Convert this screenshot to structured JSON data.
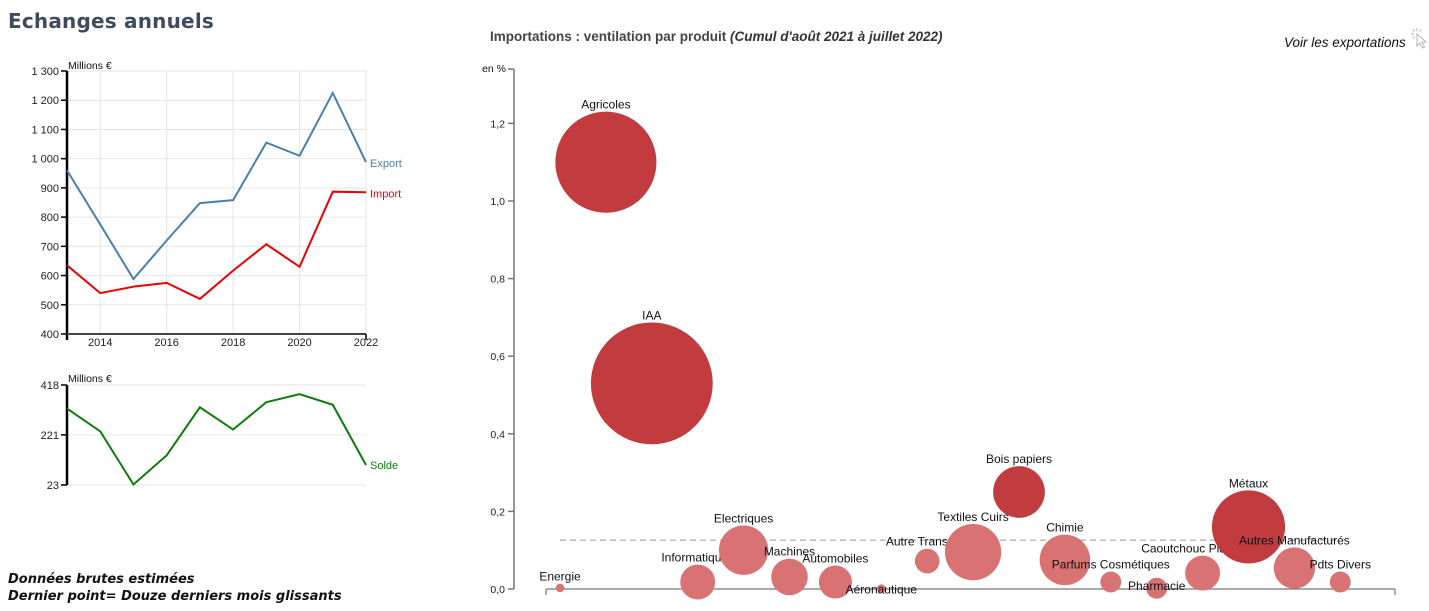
{
  "page": {
    "title": "Echanges annuels",
    "notes": [
      "Données brutes estimées",
      "Dernier point= Douze derniers mois glissants"
    ]
  },
  "bubble_header": {
    "title": "Importations : ventilation par produit",
    "subtitle": "(Cumul d'août 2021 à juillet 2022)",
    "toggle_label": "Voir les exportations",
    "toggle_icon": "pointer-click-icon"
  },
  "colors": {
    "export": "#4a80b0",
    "import": "#ee0000",
    "solde": "#0d7d0d",
    "bubble_dark": "#c23b3e",
    "bubble_light": "#d87273",
    "axis": "#000000",
    "grid": "#e6e6e6"
  },
  "chart_data": [
    {
      "type": "line",
      "title": "Echanges annuels",
      "ylabel": "Millions €",
      "x": [
        2013,
        2014,
        2015,
        2016,
        2017,
        2018,
        2019,
        2020,
        2021,
        2022
      ],
      "xticks": [
        "2014",
        "2016",
        "2018",
        "2020",
        "2022"
      ],
      "yticks": [
        "400",
        "500",
        "600",
        "700",
        "800",
        "900",
        "1 000",
        "1 100",
        "1 200",
        "1 300"
      ],
      "ylim": [
        400,
        1300
      ],
      "xlim": [
        2013,
        2022
      ],
      "grid": true,
      "series": [
        {
          "name": "Export",
          "values": [
            960,
            775,
            588,
            720,
            848,
            858,
            1055,
            1010,
            1225,
            988
          ]
        },
        {
          "name": "Import",
          "values": [
            635,
            540,
            562,
            575,
            520,
            617,
            707,
            630,
            887,
            885
          ]
        }
      ]
    },
    {
      "type": "line",
      "title": "Solde",
      "ylabel": "Millions €",
      "x": [
        2013,
        2014,
        2015,
        2016,
        2017,
        2018,
        2019,
        2020,
        2021,
        2022
      ],
      "yticks": [
        "23",
        "221",
        "418"
      ],
      "ylim": [
        23,
        418
      ],
      "xlim": [
        2013,
        2022
      ],
      "grid": true,
      "series": [
        {
          "name": "Solde",
          "values": [
            325,
            235,
            25,
            140,
            330,
            242,
            350,
            382,
            340,
            102
          ]
        }
      ]
    },
    {
      "type": "scatter",
      "title": "Importations : ventilation par produit (Cumul d'août 2021 à juillet 2022)",
      "ylabel": "en %",
      "yticks": [
        "0,0",
        "0,2",
        "0,4",
        "0,6",
        "0,8",
        "1,0",
        "1,2"
      ],
      "ylim": [
        0,
        1.34
      ],
      "reference_line": 0.126,
      "bubbles": [
        {
          "label": "Energie",
          "y": 0.003,
          "size": 0.3,
          "shade": "light"
        },
        {
          "label": "Agricoles",
          "y": 1.1,
          "size": 42,
          "shade": "dark"
        },
        {
          "label": "IAA",
          "y": 0.53,
          "size": 61,
          "shade": "dark"
        },
        {
          "label": "Informatiques",
          "y": 0.018,
          "size": 5,
          "shade": "light"
        },
        {
          "label": "Electriques",
          "y": 0.1,
          "size": 10,
          "shade": "light"
        },
        {
          "label": "Machines",
          "y": 0.031,
          "size": 5.5,
          "shade": "light"
        },
        {
          "label": "Automobiles",
          "y": 0.018,
          "size": 4.5,
          "shade": "light"
        },
        {
          "label": "Aéronautique",
          "y": 0.001,
          "size": 0.3,
          "shade": "light"
        },
        {
          "label": "Autre Transport",
          "y": 0.072,
          "size": 2.5,
          "shade": "light"
        },
        {
          "label": "Textiles Cuirs",
          "y": 0.095,
          "size": 13,
          "shade": "light"
        },
        {
          "label": "Bois papiers",
          "y": 0.25,
          "size": 11,
          "shade": "dark"
        },
        {
          "label": "Chimie",
          "y": 0.075,
          "size": 10.5,
          "shade": "light"
        },
        {
          "label": "Parfums Cosmétiques",
          "y": 0.018,
          "size": 1.8,
          "shade": "light"
        },
        {
          "label": "Pharmacie",
          "y": 0.002,
          "size": 1.8,
          "shade": "light"
        },
        {
          "label": "Caoutchouc Plastiques",
          "y": 0.041,
          "size": 5,
          "shade": "light"
        },
        {
          "label": "Métaux",
          "y": 0.16,
          "size": 22,
          "shade": "dark"
        },
        {
          "label": "Autres Manufacturés",
          "y": 0.054,
          "size": 7,
          "shade": "light"
        },
        {
          "label": "Pdts Divers",
          "y": 0.018,
          "size": 1.8,
          "shade": "light"
        }
      ]
    }
  ]
}
